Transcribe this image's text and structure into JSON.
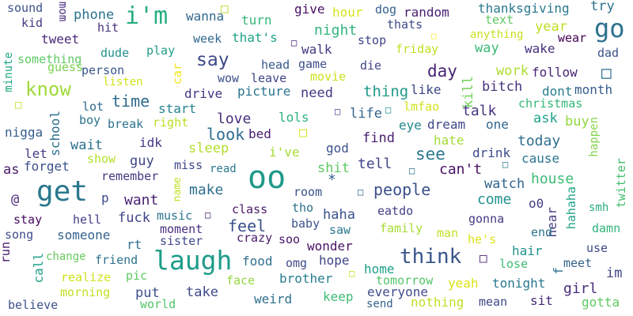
{
  "words": [
    {
      "text": "sound",
      "color": "#3b518b"
    },
    {
      "text": "mom",
      "color": "#472d7b"
    },
    {
      "text": "phone",
      "color": "#2c738e"
    },
    {
      "text": "i'm",
      "color": "#27ad81"
    },
    {
      "text": "wanna",
      "color": "#31678e"
    },
    {
      "text": "□",
      "color": "#b5de2b"
    },
    {
      "text": "turn",
      "color": "#35b779"
    },
    {
      "text": "give",
      "color": "#471063"
    },
    {
      "text": "dog",
      "color": "#355f8d"
    },
    {
      "text": "random",
      "color": "#481f70"
    },
    {
      "text": "thanksgiving",
      "color": "#2a788e"
    },
    {
      "text": "try",
      "color": "#2d708e"
    },
    {
      "text": "kid",
      "color": "#443983"
    },
    {
      "text": "hit",
      "color": "#46327e"
    },
    {
      "text": "hour",
      "color": "#d8e219"
    },
    {
      "text": "thats",
      "color": "#3e4a89"
    },
    {
      "text": "text",
      "color": "#5ec962"
    },
    {
      "text": "go",
      "color": "#2c728e"
    },
    {
      "text": "tweet",
      "color": "#482878"
    },
    {
      "text": "night",
      "color": "#2fb47c"
    },
    {
      "text": "stop",
      "color": "#414487"
    },
    {
      "text": "□",
      "color": "#fde725"
    },
    {
      "text": "anything",
      "color": "#c8e020"
    },
    {
      "text": "year",
      "color": "#bddf26"
    },
    {
      "text": "dude",
      "color": "#21918c"
    },
    {
      "text": "week",
      "color": "#31688e"
    },
    {
      "text": "that's",
      "color": "#1fa187"
    },
    {
      "text": "□",
      "color": "#482475"
    },
    {
      "text": "walk",
      "color": "#453781"
    },
    {
      "text": "friday",
      "color": "#c2df23"
    },
    {
      "text": "way",
      "color": "#3bbb75"
    },
    {
      "text": "wake",
      "color": "#46327e"
    },
    {
      "text": "wear",
      "color": "#440154"
    },
    {
      "text": "something",
      "color": "#5ec962"
    },
    {
      "text": "play",
      "color": "#1f9e89"
    },
    {
      "text": "say",
      "color": "#3e4989"
    },
    {
      "text": "head",
      "color": "#38588c"
    },
    {
      "text": "game",
      "color": "#3d4e8a"
    },
    {
      "text": "guess",
      "color": "#7ad151"
    },
    {
      "text": "person",
      "color": "#39558c"
    },
    {
      "text": "die",
      "color": "#404688"
    },
    {
      "text": "work",
      "color": "#addc30"
    },
    {
      "text": "dad",
      "color": "#3b528b"
    },
    {
      "text": "minute",
      "color": "#22a785"
    },
    {
      "text": "day",
      "color": "#482475"
    },
    {
      "text": "follow",
      "color": "#482576"
    },
    {
      "text": "□",
      "color": "#2e6e8e"
    },
    {
      "text": "wow",
      "color": "#3c4f8a"
    },
    {
      "text": "leave",
      "color": "#414487"
    },
    {
      "text": "movie",
      "color": "#cde11d"
    },
    {
      "text": "listen",
      "color": "#d2e21b"
    },
    {
      "text": "car",
      "color": "#f1e51d"
    },
    {
      "text": "know",
      "color": "#a0da39"
    },
    {
      "text": "picture",
      "color": "#2a768e"
    },
    {
      "text": "need",
      "color": "#443a83"
    },
    {
      "text": "thing",
      "color": "#1f9a8a"
    },
    {
      "text": "like",
      "color": "#3f4788"
    },
    {
      "text": "bitch",
      "color": "#46327e"
    },
    {
      "text": "dont",
      "color": "#277f8e"
    },
    {
      "text": "month",
      "color": "#365d8d"
    },
    {
      "text": "kill",
      "color": "#70cf57"
    },
    {
      "text": "drive",
      "color": "#453581"
    },
    {
      "text": "time",
      "color": "#2f6c8e"
    },
    {
      "text": "lot",
      "color": "#30698e"
    },
    {
      "text": "start",
      "color": "#25848e"
    },
    {
      "text": "□",
      "color": "#bddf26"
    },
    {
      "text": "lmfao",
      "color": "#d2e21b"
    },
    {
      "text": "christmas",
      "color": "#35b779"
    },
    {
      "text": "□",
      "color": "#3f4889"
    },
    {
      "text": "□",
      "color": "#20928c"
    },
    {
      "text": "talk",
      "color": "#463480"
    },
    {
      "text": "boy",
      "color": "#2b748e"
    },
    {
      "text": "life",
      "color": "#32648e"
    },
    {
      "text": "love",
      "color": "#472e7c"
    },
    {
      "text": "lols",
      "color": "#2db27d"
    },
    {
      "text": "school",
      "color": "#2d718e"
    },
    {
      "text": "break",
      "color": "#2c738e"
    },
    {
      "text": "right",
      "color": "#b8de29"
    },
    {
      "text": "eye",
      "color": "#24878e"
    },
    {
      "text": "dream",
      "color": "#3f4788"
    },
    {
      "text": "one",
      "color": "#31668e"
    },
    {
      "text": "ask",
      "color": "#1fa088"
    },
    {
      "text": "buy",
      "color": "#93d741"
    },
    {
      "text": "happen",
      "color": "#84d44b"
    },
    {
      "text": "nigga",
      "color": "#355f8d"
    },
    {
      "text": "look",
      "color": "#2f6c8e"
    },
    {
      "text": "bed",
      "color": "#481a6c"
    },
    {
      "text": "□",
      "color": "#d0e11c"
    },
    {
      "text": "find",
      "color": "#481f70"
    },
    {
      "text": "hate",
      "color": "#a5db36"
    },
    {
      "text": "today",
      "color": "#2e6e8e"
    },
    {
      "text": "let",
      "color": "#433e85"
    },
    {
      "text": "wait",
      "color": "#2c728e"
    },
    {
      "text": "idk",
      "color": "#453882"
    },
    {
      "text": "sleep",
      "color": "#b2dd2d"
    },
    {
      "text": "i've",
      "color": "#a8db34"
    },
    {
      "text": "god",
      "color": "#3b528b"
    },
    {
      "text": "see",
      "color": "#2a788e"
    },
    {
      "text": "drink",
      "color": "#3e4a89"
    },
    {
      "text": "cause",
      "color": "#2a768e"
    },
    {
      "text": "show",
      "color": "#b5de2b"
    },
    {
      "text": "guy",
      "color": "#404688"
    },
    {
      "text": "remember",
      "color": "#453882"
    },
    {
      "text": "miss",
      "color": "#3f4889"
    },
    {
      "text": "read",
      "color": "#2a788e"
    },
    {
      "text": "shit",
      "color": "#5ec962"
    },
    {
      "text": "tell",
      "color": "#404588"
    },
    {
      "text": "□",
      "color": "#2e6f8e"
    },
    {
      "text": "can't",
      "color": "#471164"
    },
    {
      "text": "□",
      "color": "#2a778e"
    },
    {
      "text": "as",
      "color": "#481769"
    },
    {
      "text": "forget",
      "color": "#3b518b"
    },
    {
      "text": "oo",
      "color": "#1f998a"
    },
    {
      "text": "house",
      "color": "#3dbc74"
    },
    {
      "text": "twitter",
      "color": "#44bf70"
    },
    {
      "text": "get",
      "color": "#2a788e"
    },
    {
      "text": "name",
      "color": "#c2df23"
    },
    {
      "text": "*",
      "color": "#355f8d"
    },
    {
      "text": "watch",
      "color": "#31668e"
    },
    {
      "text": "@",
      "color": "#482878"
    },
    {
      "text": "want",
      "color": "#482173"
    },
    {
      "text": "make",
      "color": "#2d708e"
    },
    {
      "text": "room",
      "color": "#3b518b"
    },
    {
      "text": "□",
      "color": "#2e6e8e"
    },
    {
      "text": "people",
      "color": "#3c508b"
    },
    {
      "text": "p",
      "color": "#3e4989"
    },
    {
      "text": "come",
      "color": "#21918c"
    },
    {
      "text": "o0",
      "color": "#433d84"
    },
    {
      "text": "hahaha",
      "color": "#20a386"
    },
    {
      "text": "stay",
      "color": "#460a5d"
    },
    {
      "text": "hell",
      "color": "#433e85"
    },
    {
      "text": "fuck",
      "color": "#404688"
    },
    {
      "text": "music",
      "color": "#2b748e"
    },
    {
      "text": "□",
      "color": "#481c6e"
    },
    {
      "text": "class",
      "color": "#48186a"
    },
    {
      "text": "tho",
      "color": "#2c718e"
    },
    {
      "text": "haha",
      "color": "#3a538b"
    },
    {
      "text": "eatdo",
      "color": "#424186"
    },
    {
      "text": "gonna",
      "color": "#443983"
    },
    {
      "text": "hear",
      "color": "#433e85"
    },
    {
      "text": "smh",
      "color": "#26ad81"
    },
    {
      "text": "song",
      "color": "#3e4c8a"
    },
    {
      "text": "someone",
      "color": "#34618d"
    },
    {
      "text": "moment",
      "color": "#472f7d"
    },
    {
      "text": "feel",
      "color": "#3b518b"
    },
    {
      "text": "baby",
      "color": "#3a548c"
    },
    {
      "text": "family",
      "color": "#a8db34"
    },
    {
      "text": "man",
      "color": "#c2df23"
    },
    {
      "text": "end",
      "color": "#2c728e"
    },
    {
      "text": "damn",
      "color": "#31b57b"
    },
    {
      "text": "run",
      "color": "#48186a"
    },
    {
      "text": "rt",
      "color": "#2d708e"
    },
    {
      "text": "sister",
      "color": "#3f4889"
    },
    {
      "text": "crazy",
      "color": "#481a6c"
    },
    {
      "text": "soo",
      "color": "#481769"
    },
    {
      "text": "saw",
      "color": "#2a778e"
    },
    {
      "text": "he's",
      "color": "#dde318"
    },
    {
      "text": "hair",
      "color": "#21918c"
    },
    {
      "text": "use",
      "color": "#3e4a89"
    },
    {
      "text": "call",
      "color": "#1fa188"
    },
    {
      "text": "change",
      "color": "#67cc5c"
    },
    {
      "text": "friend",
      "color": "#2c738e"
    },
    {
      "text": "laugh",
      "color": "#1e9c89"
    },
    {
      "text": "wonder",
      "color": "#471365"
    },
    {
      "text": "think",
      "color": "#39568c"
    },
    {
      "text": "□",
      "color": "#482071"
    },
    {
      "text": "f",
      "color": "#2d708e"
    },
    {
      "text": "meet",
      "color": "#33638d"
    },
    {
      "text": "food",
      "color": "#2e6f8e"
    },
    {
      "text": "omg",
      "color": "#3e4a89"
    },
    {
      "text": "hope",
      "color": "#404588"
    },
    {
      "text": "lose",
      "color": "#3dbc74"
    },
    {
      "text": "realize",
      "color": "#d0e11c"
    },
    {
      "text": "pic",
      "color": "#5ec962"
    },
    {
      "text": "face",
      "color": "#95d840"
    },
    {
      "text": "brother",
      "color": "#287d8e"
    },
    {
      "text": "□",
      "color": "#c8e020"
    },
    {
      "text": "home",
      "color": "#1f9e89"
    },
    {
      "text": "tomorrow",
      "color": "#54c568"
    },
    {
      "text": "yeah",
      "color": "#dde318"
    },
    {
      "text": "tonight",
      "color": "#2a788e"
    },
    {
      "text": "im",
      "color": "#414487"
    },
    {
      "text": "morning",
      "color": "#c2df23"
    },
    {
      "text": "put",
      "color": "#3c4f8a"
    },
    {
      "text": "take",
      "color": "#3e4989"
    },
    {
      "text": "keep",
      "color": "#3dbc74"
    },
    {
      "text": "everyone",
      "color": "#3e4c8a"
    },
    {
      "text": "girl",
      "color": "#472d7b"
    },
    {
      "text": "believe",
      "color": "#3b528b"
    },
    {
      "text": "world",
      "color": "#52c569"
    },
    {
      "text": "weird",
      "color": "#2e6f8e"
    },
    {
      "text": "send",
      "color": "#34618d"
    },
    {
      "text": "nothing",
      "color": "#c0df25"
    },
    {
      "text": "mean",
      "color": "#3f4788"
    },
    {
      "text": "sit",
      "color": "#482878"
    },
    {
      "text": "gotta",
      "color": "#5ec962"
    }
  ]
}
